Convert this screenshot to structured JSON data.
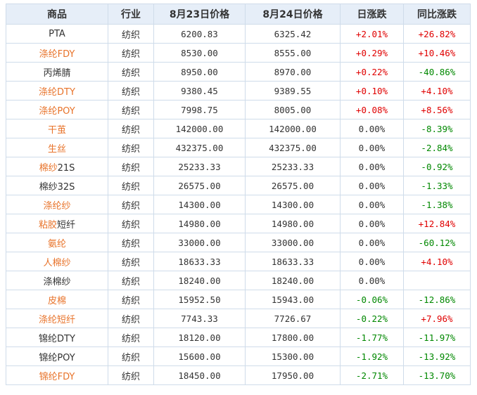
{
  "colors": {
    "up": "#e00000",
    "down": "#008800",
    "flat": "#333333",
    "link": "#e8732a"
  },
  "table": {
    "headers": [
      "商品",
      "行业",
      "8月23日价格",
      "8月24日价格",
      "日涨跌",
      "同比涨跌"
    ],
    "rows": [
      {
        "segments": [
          {
            "t": "PTA",
            "link": false
          }
        ],
        "industry": "纺织",
        "p1": "6200.83",
        "p2": "6325.42",
        "day": "+2.01%",
        "day_dir": "up",
        "yoy": "+26.82%",
        "yoy_dir": "up"
      },
      {
        "segments": [
          {
            "t": "涤纶FDY",
            "link": true
          }
        ],
        "industry": "纺织",
        "p1": "8530.00",
        "p2": "8555.00",
        "day": "+0.29%",
        "day_dir": "up",
        "yoy": "+10.46%",
        "yoy_dir": "up"
      },
      {
        "segments": [
          {
            "t": "丙烯腈",
            "link": false
          }
        ],
        "industry": "纺织",
        "p1": "8950.00",
        "p2": "8970.00",
        "day": "+0.22%",
        "day_dir": "up",
        "yoy": "-40.86%",
        "yoy_dir": "down"
      },
      {
        "segments": [
          {
            "t": "涤纶DTY",
            "link": true
          }
        ],
        "industry": "纺织",
        "p1": "9380.45",
        "p2": "9389.55",
        "day": "+0.10%",
        "day_dir": "up",
        "yoy": "+4.10%",
        "yoy_dir": "up"
      },
      {
        "segments": [
          {
            "t": "涤纶POY",
            "link": true
          }
        ],
        "industry": "纺织",
        "p1": "7998.75",
        "p2": "8005.00",
        "day": "+0.08%",
        "day_dir": "up",
        "yoy": "+8.56%",
        "yoy_dir": "up"
      },
      {
        "segments": [
          {
            "t": "干茧",
            "link": true
          }
        ],
        "industry": "纺织",
        "p1": "142000.00",
        "p2": "142000.00",
        "day": "0.00%",
        "day_dir": "flat",
        "yoy": "-8.39%",
        "yoy_dir": "down"
      },
      {
        "segments": [
          {
            "t": "生丝",
            "link": true
          }
        ],
        "industry": "纺织",
        "p1": "432375.00",
        "p2": "432375.00",
        "day": "0.00%",
        "day_dir": "flat",
        "yoy": "-2.84%",
        "yoy_dir": "down"
      },
      {
        "segments": [
          {
            "t": "棉纱",
            "link": true
          },
          {
            "t": "21S",
            "link": false
          }
        ],
        "industry": "纺织",
        "p1": "25233.33",
        "p2": "25233.33",
        "day": "0.00%",
        "day_dir": "flat",
        "yoy": "-0.92%",
        "yoy_dir": "down"
      },
      {
        "segments": [
          {
            "t": "棉纱32S",
            "link": false
          }
        ],
        "industry": "纺织",
        "p1": "26575.00",
        "p2": "26575.00",
        "day": "0.00%",
        "day_dir": "flat",
        "yoy": "-1.33%",
        "yoy_dir": "down"
      },
      {
        "segments": [
          {
            "t": "涤纶纱",
            "link": true
          }
        ],
        "industry": "纺织",
        "p1": "14300.00",
        "p2": "14300.00",
        "day": "0.00%",
        "day_dir": "flat",
        "yoy": "-1.38%",
        "yoy_dir": "down"
      },
      {
        "segments": [
          {
            "t": "粘胶",
            "link": true
          },
          {
            "t": "短纤",
            "link": false
          }
        ],
        "industry": "纺织",
        "p1": "14980.00",
        "p2": "14980.00",
        "day": "0.00%",
        "day_dir": "flat",
        "yoy": "+12.84%",
        "yoy_dir": "up"
      },
      {
        "segments": [
          {
            "t": "氨纶",
            "link": true
          }
        ],
        "industry": "纺织",
        "p1": "33000.00",
        "p2": "33000.00",
        "day": "0.00%",
        "day_dir": "flat",
        "yoy": "-60.12%",
        "yoy_dir": "down"
      },
      {
        "segments": [
          {
            "t": "人棉纱",
            "link": true
          }
        ],
        "industry": "纺织",
        "p1": "18633.33",
        "p2": "18633.33",
        "day": "0.00%",
        "day_dir": "flat",
        "yoy": "+4.10%",
        "yoy_dir": "up"
      },
      {
        "segments": [
          {
            "t": "涤棉纱",
            "link": false
          }
        ],
        "industry": "纺织",
        "p1": "18240.00",
        "p2": "18240.00",
        "day": "0.00%",
        "day_dir": "flat",
        "yoy": "",
        "yoy_dir": "flat"
      },
      {
        "segments": [
          {
            "t": "皮棉",
            "link": true
          }
        ],
        "industry": "纺织",
        "p1": "15952.50",
        "p2": "15943.00",
        "day": "-0.06%",
        "day_dir": "down",
        "yoy": "-12.86%",
        "yoy_dir": "down"
      },
      {
        "segments": [
          {
            "t": "涤纶短纤",
            "link": true
          }
        ],
        "industry": "纺织",
        "p1": "7743.33",
        "p2": "7726.67",
        "day": "-0.22%",
        "day_dir": "down",
        "yoy": "+7.96%",
        "yoy_dir": "up"
      },
      {
        "segments": [
          {
            "t": "锦纶DTY",
            "link": false
          }
        ],
        "industry": "纺织",
        "p1": "18120.00",
        "p2": "17800.00",
        "day": "-1.77%",
        "day_dir": "down",
        "yoy": "-11.97%",
        "yoy_dir": "down"
      },
      {
        "segments": [
          {
            "t": "锦纶POY",
            "link": false
          }
        ],
        "industry": "纺织",
        "p1": "15600.00",
        "p2": "15300.00",
        "day": "-1.92%",
        "day_dir": "down",
        "yoy": "-13.92%",
        "yoy_dir": "down"
      },
      {
        "segments": [
          {
            "t": "锦纶FDY",
            "link": true
          }
        ],
        "industry": "纺织",
        "p1": "18450.00",
        "p2": "17950.00",
        "day": "-2.71%",
        "day_dir": "down",
        "yoy": "-13.70%",
        "yoy_dir": "down"
      }
    ]
  }
}
